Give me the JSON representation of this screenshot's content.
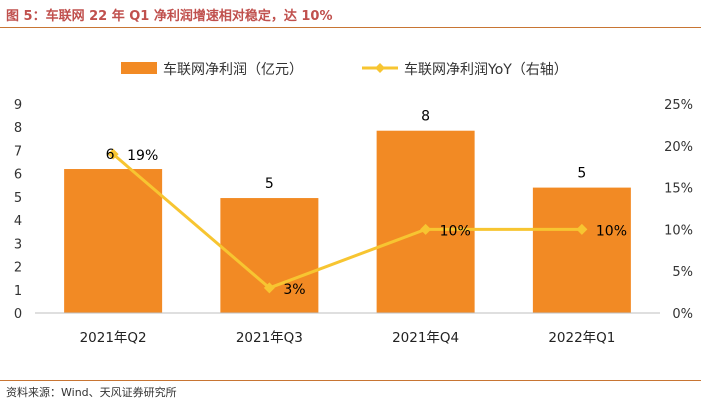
{
  "header": {
    "title": "图 5：车联网 22 年 Q1 净利润增速相对稳定，达 10%"
  },
  "footer": {
    "source": "资料来源：Wind、天风证券研究所"
  },
  "colors": {
    "bar": "#f28a24",
    "line": "#f7c531",
    "title": "#c0504d",
    "rule": "#c87533"
  },
  "chart_data": {
    "type": "bar",
    "title": "",
    "categories": [
      "2021年Q2",
      "2021年Q3",
      "2021年Q4",
      "2022年Q1"
    ],
    "series": [
      {
        "name": "车联网净利润（亿元）",
        "type": "bar",
        "axis": "left",
        "values": [
          6.2,
          4.95,
          7.85,
          5.4
        ],
        "labels": [
          "6",
          "5",
          "8",
          "5"
        ]
      },
      {
        "name": "车联网净利润YoY（右轴）",
        "type": "line",
        "axis": "right",
        "values": [
          19,
          3,
          10,
          10
        ],
        "labels": [
          "19%",
          "3%",
          "10%",
          "10%"
        ]
      }
    ],
    "y_left": {
      "min": 0,
      "max": 9,
      "ticks": [
        "0",
        "1",
        "2",
        "3",
        "4",
        "5",
        "6",
        "7",
        "8",
        "9"
      ]
    },
    "y_right": {
      "min": 0,
      "max": 25,
      "ticks": [
        "0%",
        "5%",
        "10%",
        "15%",
        "20%",
        "25%"
      ]
    },
    "legend": "top-center",
    "grid": false
  }
}
